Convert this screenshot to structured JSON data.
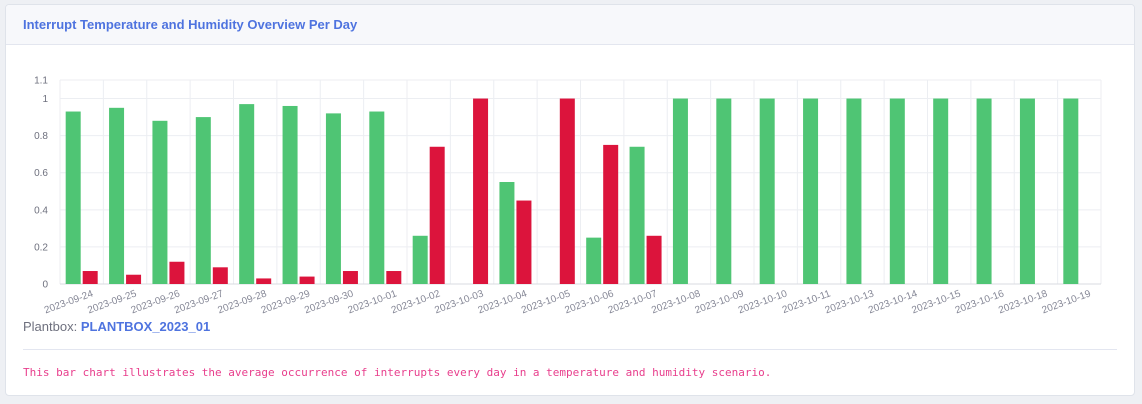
{
  "card": {
    "title": "Interrupt Temperature and Humidity Overview Per Day",
    "plantbox_label": "Plantbox:",
    "plantbox_value": "PLANTBOX_2023_01",
    "description": "This bar chart illustrates the average occurrence of interrupts every day in a temperature and humidity scenario."
  },
  "colors": {
    "green": "#4fc574",
    "red": "#dc143c",
    "accent": "#4e73df"
  },
  "chart_data": {
    "type": "bar",
    "title": "",
    "xlabel": "",
    "ylabel": "",
    "ylim": [
      0,
      1.1
    ],
    "yticks": [
      "0",
      "0.2",
      "0.4",
      "0.6",
      "0.8",
      "1",
      "1.1"
    ],
    "grid": true,
    "legend": "none",
    "categories": [
      "2023-09-24",
      "2023-09-25",
      "2023-09-26",
      "2023-09-27",
      "2023-09-28",
      "2023-09-29",
      "2023-09-30",
      "2023-10-01",
      "2023-10-02",
      "2023-10-03",
      "2023-10-04",
      "2023-10-05",
      "2023-10-06",
      "2023-10-07",
      "2023-10-08",
      "2023-10-09",
      "2023-10-10",
      "2023-10-11",
      "2023-10-13",
      "2023-10-14",
      "2023-10-15",
      "2023-10-16",
      "2023-10-18",
      "2023-10-19"
    ],
    "series": [
      {
        "color": "#4fc574",
        "values": [
          0.93,
          0.95,
          0.88,
          0.9,
          0.97,
          0.96,
          0.92,
          0.93,
          0.26,
          0,
          0.55,
          0,
          0.25,
          0.74,
          1,
          1,
          1,
          1,
          1,
          1,
          1,
          1,
          1,
          1
        ]
      },
      {
        "color": "#dc143c",
        "values": [
          0.07,
          0.05,
          0.12,
          0.09,
          0.03,
          0.04,
          0.07,
          0.07,
          0.74,
          1,
          0.45,
          1,
          0.75,
          0.26,
          0,
          0,
          0,
          0,
          0,
          0,
          0,
          0,
          0,
          0
        ]
      }
    ]
  }
}
